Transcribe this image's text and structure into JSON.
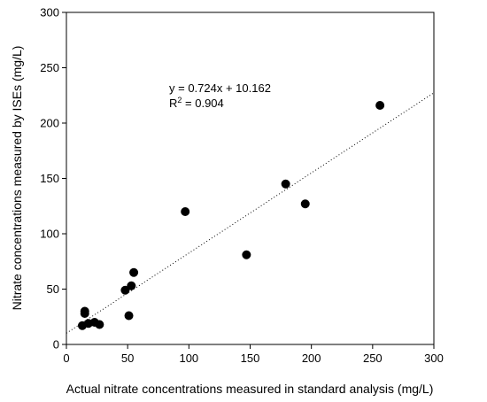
{
  "chart_data": {
    "type": "scatter",
    "title": "",
    "xlabel": "Actual nitrate concentrations measured in standard analysis (mg/L)",
    "ylabel": "Nitrate concentrations measured by ISEs (mg/L)",
    "xlim": [
      0,
      300
    ],
    "ylim": [
      0,
      300
    ],
    "xticks": [
      0,
      50,
      100,
      150,
      200,
      250,
      300
    ],
    "yticks": [
      0,
      50,
      100,
      150,
      200,
      250,
      300
    ],
    "grid": false,
    "points": {
      "x": [
        13,
        15,
        15,
        18,
        23,
        27,
        48,
        51,
        53,
        55,
        97,
        147,
        179,
        195,
        256
      ],
      "y": [
        17,
        28,
        30,
        19,
        20,
        18,
        49,
        26,
        53,
        65,
        120,
        81,
        145,
        127,
        216
      ]
    },
    "trendline": {
      "style": "dotted",
      "slope": 0.724,
      "intercept": 10.162,
      "x_range": [
        0,
        300
      ]
    },
    "annotations": {
      "equation": "y = 0.724x + 10.162",
      "r2_prefix": "R",
      "r2_sup": "2",
      "r2_value": " = 0.904"
    },
    "marker_color": "#000000"
  }
}
